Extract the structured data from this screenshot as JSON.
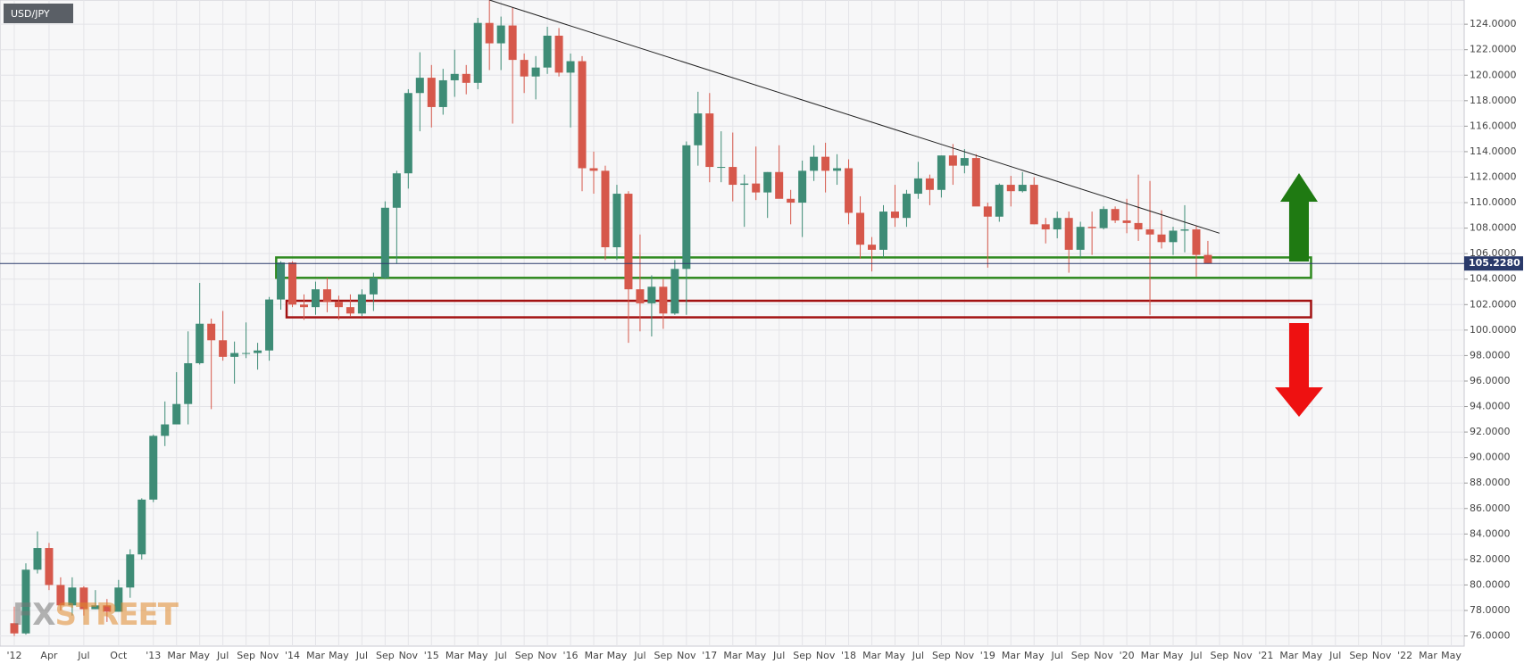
{
  "chart_data": {
    "type": "candlestick",
    "title": "USD/JPY",
    "watermark": {
      "left": "FX",
      "right": "STREET"
    },
    "categories": [
      "'12",
      null,
      null,
      "Apr",
      null,
      null,
      "Jul",
      null,
      null,
      "Oct",
      null,
      null,
      "'13",
      null,
      "Mar",
      null,
      "May",
      null,
      "Jul",
      null,
      "Sep",
      null,
      "Nov",
      null,
      "'14",
      null,
      "Mar",
      null,
      "May",
      null,
      "Jul",
      null,
      "Sep",
      null,
      "Nov",
      null,
      "'15",
      null,
      "Mar",
      null,
      "May",
      null,
      "Jul",
      null,
      "Sep",
      null,
      "Nov",
      null,
      "'16",
      null,
      "Mar",
      null,
      "May",
      null,
      "Jul",
      null,
      "Sep",
      null,
      "Nov",
      null,
      "'17",
      null,
      "Mar",
      null,
      "May",
      null,
      "Jul",
      null,
      "Sep",
      null,
      "Nov",
      null,
      "'18",
      null,
      "Mar",
      null,
      "May",
      null,
      "Jul",
      null,
      "Sep",
      null,
      "Nov",
      null,
      "'19",
      null,
      "Mar",
      null,
      "May",
      null,
      "Jul",
      null,
      "Sep",
      null,
      "Nov",
      null,
      "'20",
      null,
      "Mar",
      null,
      "May",
      null,
      "Jul",
      null,
      "Sep",
      null,
      "Nov",
      null,
      "'21",
      null,
      "Mar",
      null,
      "May",
      null,
      "Jul",
      null,
      "Sep",
      null,
      "Nov",
      null,
      "'22",
      null,
      "Mar",
      null,
      "May"
    ],
    "open": [
      77.0,
      76.2,
      81.2,
      82.9,
      80.0,
      78.4,
      79.8,
      78.1,
      78.4,
      77.9,
      79.8,
      82.4,
      86.7,
      91.7,
      92.6,
      94.2,
      97.4,
      100.5,
      99.2,
      97.9,
      98.2,
      98.2,
      98.4,
      102.4,
      105.3,
      102.0,
      101.8,
      103.2,
      102.2,
      101.8,
      101.3,
      102.8,
      104.1,
      109.6,
      112.3,
      118.6,
      119.8,
      117.5,
      119.6,
      120.1,
      119.4,
      124.1,
      122.5,
      123.9,
      121.2,
      119.9,
      120.6,
      123.1,
      120.2,
      121.1,
      112.7,
      112.5,
      106.5,
      110.7,
      103.2,
      102.1,
      103.4,
      101.3,
      104.8,
      114.5,
      117.0,
      112.8,
      112.8,
      111.4,
      111.5,
      110.8,
      112.4,
      110.3,
      110.0,
      112.5,
      113.6,
      112.5,
      112.7,
      109.2,
      106.7,
      106.3,
      109.3,
      108.8,
      110.7,
      111.9,
      111.0,
      113.7,
      112.9,
      113.5,
      109.7,
      108.9,
      111.4,
      110.9,
      111.4,
      108.3,
      107.9,
      108.8,
      106.3,
      108.1,
      108.0,
      109.5,
      108.6,
      108.4,
      107.9,
      107.5,
      106.9,
      107.8,
      107.9,
      105.9,
      null,
      null,
      null,
      null,
      null,
      null,
      null,
      null,
      null,
      null,
      null,
      null,
      null,
      null,
      null,
      null,
      null,
      null,
      null,
      null,
      null
    ],
    "high": [
      78.3,
      81.7,
      84.2,
      83.3,
      80.6,
      80.6,
      79.9,
      79.6,
      78.9,
      80.4,
      82.8,
      86.8,
      91.8,
      94.4,
      96.7,
      99.9,
      103.7,
      100.9,
      101.5,
      99.1,
      100.6,
      99.0,
      102.6,
      105.4,
      105.4,
      102.8,
      103.8,
      104.1,
      102.7,
      102.8,
      103.2,
      104.5,
      110.1,
      112.5,
      118.9,
      121.8,
      120.8,
      120.5,
      122.0,
      120.8,
      124.5,
      125.9,
      124.6,
      125.3,
      121.7,
      121.5,
      123.8,
      123.7,
      121.7,
      121.5,
      114.0,
      112.9,
      111.4,
      110.9,
      107.5,
      104.3,
      104.0,
      105.5,
      114.8,
      118.7,
      118.6,
      115.6,
      115.5,
      112.2,
      114.4,
      112.4,
      114.5,
      111.0,
      113.3,
      114.5,
      114.7,
      113.8,
      113.4,
      110.5,
      107.3,
      109.8,
      111.4,
      111.0,
      113.2,
      112.2,
      113.7,
      114.6,
      114.2,
      113.8,
      110.0,
      111.5,
      112.1,
      112.4,
      112.0,
      108.8,
      109.3,
      109.3,
      108.5,
      109.3,
      109.7,
      109.7,
      110.3,
      112.2,
      111.7,
      109.4,
      108.1,
      109.8,
      108.2,
      107.0,
      null,
      null,
      null,
      null,
      null,
      null,
      null,
      null,
      null,
      null,
      null,
      null,
      null,
      null,
      null,
      null,
      null,
      null,
      null,
      null,
      null
    ],
    "low": [
      76.0,
      76.1,
      80.9,
      79.6,
      78.0,
      77.6,
      77.6,
      78.1,
      77.1,
      77.9,
      79.0,
      82.0,
      86.5,
      90.9,
      92.6,
      92.6,
      97.3,
      93.8,
      97.6,
      95.8,
      97.8,
      96.9,
      97.6,
      101.6,
      101.8,
      100.8,
      101.2,
      101.4,
      100.8,
      101.1,
      101.1,
      101.5,
      104.0,
      105.2,
      111.1,
      115.6,
      115.9,
      116.9,
      118.3,
      118.5,
      118.9,
      120.4,
      120.4,
      116.2,
      118.6,
      118.1,
      120.1,
      119.9,
      115.9,
      110.9,
      110.7,
      105.5,
      105.5,
      99.0,
      99.9,
      99.5,
      100.1,
      101.2,
      101.2,
      112.9,
      111.6,
      111.6,
      110.1,
      108.1,
      110.2,
      108.8,
      110.6,
      108.3,
      107.3,
      111.7,
      110.8,
      111.4,
      108.3,
      105.6,
      104.6,
      105.7,
      108.1,
      108.1,
      110.3,
      109.8,
      110.4,
      111.4,
      112.3,
      109.8,
      104.9,
      108.5,
      109.7,
      110.8,
      108.3,
      106.8,
      107.2,
      104.5,
      105.7,
      105.9,
      107.9,
      108.4,
      107.6,
      107.0,
      101.2,
      106.4,
      105.9,
      106.1,
      104.2,
      105.2,
      null,
      null,
      null,
      null,
      null,
      null,
      null,
      null,
      null,
      null,
      null,
      null,
      null,
      null,
      null,
      null,
      null,
      null,
      null,
      null,
      null
    ],
    "close": [
      76.2,
      81.2,
      82.9,
      80.0,
      78.4,
      79.8,
      78.1,
      78.4,
      77.9,
      79.8,
      82.4,
      86.7,
      91.7,
      92.6,
      94.2,
      97.4,
      100.5,
      99.2,
      97.9,
      98.2,
      98.2,
      98.4,
      102.4,
      105.3,
      102.0,
      101.8,
      103.2,
      102.2,
      101.8,
      101.3,
      102.8,
      104.1,
      109.6,
      112.3,
      118.6,
      119.8,
      117.5,
      119.6,
      120.1,
      119.4,
      124.1,
      122.5,
      123.9,
      121.2,
      119.9,
      120.6,
      123.1,
      120.2,
      121.1,
      112.7,
      112.5,
      106.5,
      110.7,
      103.2,
      102.1,
      103.4,
      101.3,
      104.8,
      114.5,
      117.0,
      112.8,
      112.8,
      111.4,
      111.5,
      110.8,
      112.4,
      110.3,
      110.0,
      112.5,
      113.6,
      112.5,
      112.7,
      109.2,
      106.7,
      106.3,
      109.3,
      108.8,
      110.7,
      111.9,
      111.0,
      113.7,
      112.9,
      113.5,
      109.7,
      108.9,
      111.4,
      110.9,
      111.4,
      108.3,
      107.9,
      108.8,
      106.3,
      108.1,
      108.0,
      109.5,
      108.6,
      108.4,
      107.9,
      107.5,
      106.9,
      107.8,
      107.9,
      105.9,
      105.23,
      null,
      null,
      null,
      null,
      null,
      null,
      null,
      null,
      null,
      null,
      null,
      null,
      null,
      null,
      null,
      null,
      null,
      null,
      null,
      null,
      null
    ],
    "up_color": "#3e8c76",
    "down_color": "#d6584b",
    "ylim": [
      75.2,
      125.9
    ],
    "yticks": [
      {
        "value": 76,
        "label": "76.0000"
      },
      {
        "value": 78,
        "label": "78.0000"
      },
      {
        "value": 80,
        "label": "80.0000"
      },
      {
        "value": 82,
        "label": "82.0000"
      },
      {
        "value": 84,
        "label": "84.0000"
      },
      {
        "value": 86,
        "label": "86.0000"
      },
      {
        "value": 88,
        "label": "88.0000"
      },
      {
        "value": 90,
        "label": "90.0000"
      },
      {
        "value": 92,
        "label": "92.0000"
      },
      {
        "value": 94,
        "label": "94.0000"
      },
      {
        "value": 96,
        "label": "96.0000"
      },
      {
        "value": 98,
        "label": "98.0000"
      },
      {
        "value": 100,
        "label": "100.0000"
      },
      {
        "value": 102,
        "label": "102.0000"
      },
      {
        "value": 104,
        "label": "104.0000"
      },
      {
        "value": 106,
        "label": "106.0000"
      },
      {
        "value": 108,
        "label": "108.0000"
      },
      {
        "value": 110,
        "label": "110.0000"
      },
      {
        "value": 112,
        "label": "112.0000"
      },
      {
        "value": 114,
        "label": "114.0000"
      },
      {
        "value": 116,
        "label": "116.0000"
      },
      {
        "value": 118,
        "label": "118.0000"
      },
      {
        "value": 120,
        "label": "120.0000"
      },
      {
        "value": 122,
        "label": "122.0000"
      },
      {
        "value": 124,
        "label": "124.0000"
      }
    ],
    "grid": true,
    "last_price": {
      "value": 105.228,
      "label": "105.2280"
    },
    "trendline": {
      "values": [
        125.9,
        107.6
      ]
    },
    "zones": [
      {
        "color": "#2f8a1f",
        "ylim": [
          104.1,
          105.7
        ]
      },
      {
        "color": "#a31212",
        "ylim": [
          101.0,
          102.3
        ]
      }
    ]
  }
}
